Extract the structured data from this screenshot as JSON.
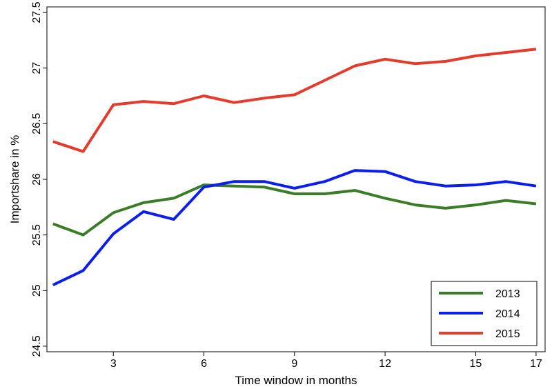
{
  "chart_data": {
    "type": "line",
    "title": "",
    "xlabel": "Time window in months",
    "ylabel": "Importshare in %",
    "x": [
      1,
      2,
      3,
      4,
      5,
      6,
      7,
      8,
      9,
      10,
      11,
      12,
      13,
      14,
      15,
      16,
      17
    ],
    "xlim": [
      0.8,
      17.3
    ],
    "ylim": [
      24.45,
      27.55
    ],
    "x_ticks": [
      3,
      6,
      9,
      12,
      15,
      17
    ],
    "x_tick_labels": [
      "3",
      "6",
      "9",
      "12",
      "15",
      "17"
    ],
    "y_ticks": [
      24.5,
      25,
      25.5,
      26,
      26.5,
      27,
      27.5
    ],
    "y_tick_labels": [
      "24.5",
      "25",
      "25.5",
      "26",
      "26.5",
      "27",
      "27.5"
    ],
    "grid": false,
    "legend_position": "bottom-right",
    "series": [
      {
        "name": "2013",
        "color": "#3a7d27",
        "values": [
          25.6,
          25.5,
          25.7,
          25.79,
          25.83,
          25.95,
          25.94,
          25.93,
          25.87,
          25.87,
          25.9,
          25.83,
          25.77,
          25.74,
          25.77,
          25.81,
          25.78
        ]
      },
      {
        "name": "2014",
        "color": "#0a1ef0",
        "values": [
          25.05,
          25.18,
          25.51,
          25.71,
          25.64,
          25.93,
          25.98,
          25.98,
          25.92,
          25.98,
          26.08,
          26.07,
          25.98,
          25.94,
          25.95,
          25.98,
          25.94
        ]
      },
      {
        "name": "2015",
        "color": "#e63a2a",
        "values": [
          26.34,
          26.25,
          26.67,
          26.7,
          26.68,
          26.75,
          26.69,
          26.73,
          26.76,
          26.89,
          27.02,
          27.08,
          27.04,
          27.06,
          27.11,
          27.14,
          27.17
        ]
      }
    ]
  }
}
